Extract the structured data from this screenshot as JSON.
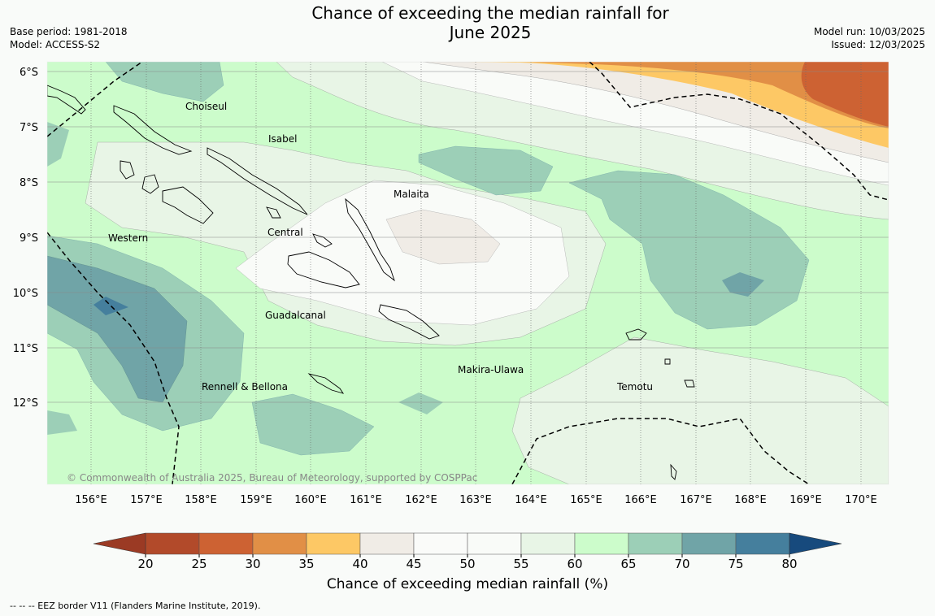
{
  "title": {
    "line1": "Chance of exceeding the median rainfall for",
    "line2": "June 2025"
  },
  "meta_left": {
    "base_period": "Base period: 1981-2018",
    "model": "Model: ACCESS-S2"
  },
  "meta_right": {
    "model_run": "Model run: 10/03/2025",
    "issued": "Issued: 12/03/2025"
  },
  "map": {
    "lat_labels": [
      "6°S",
      "7°S",
      "8°S",
      "9°S",
      "10°S",
      "11°S",
      "12°S"
    ],
    "lon_labels": [
      "156°E",
      "157°E",
      "158°E",
      "159°E",
      "160°E",
      "161°E",
      "162°E",
      "163°E",
      "164°E",
      "165°E",
      "166°E",
      "167°E",
      "168°E",
      "169°E",
      "170°E"
    ],
    "regions": [
      {
        "name": "Choiseul",
        "id": "choiseul"
      },
      {
        "name": "Isabel",
        "id": "isabel"
      },
      {
        "name": "Malaita",
        "id": "malaita"
      },
      {
        "name": "Central",
        "id": "central"
      },
      {
        "name": "Western",
        "id": "western"
      },
      {
        "name": "Guadalcanal",
        "id": "guadalcanal"
      },
      {
        "name": "Makira-Ulawa",
        "id": "makira"
      },
      {
        "name": "Temotu",
        "id": "temotu"
      },
      {
        "name": "Rennell & Bellona",
        "id": "rennell"
      }
    ],
    "copyright": "© Commonwealth of Australia 2025, Bureau of Meteorology, supported by COSPPac"
  },
  "colorbar": {
    "ticks": [
      "20",
      "25",
      "30",
      "35",
      "40",
      "45",
      "50",
      "55",
      "60",
      "65",
      "70",
      "75",
      "80"
    ],
    "colors": [
      "#b24a2a",
      "#cd6233",
      "#e18f46",
      "#fdc865",
      "#f0ece6",
      "#fafbf9",
      "#f9fbf8",
      "#e8f5e6",
      "#ccfccb",
      "#9ccfb7",
      "#70a4a7",
      "#457f9d"
    ],
    "under_color": "#9b3a24",
    "over_color": "#174a7d",
    "label": "Chance of exceeding median rainfall (%)"
  },
  "footer": "--  --  -- EEZ border V11 (Flanders Marine Institute, 2019)."
}
